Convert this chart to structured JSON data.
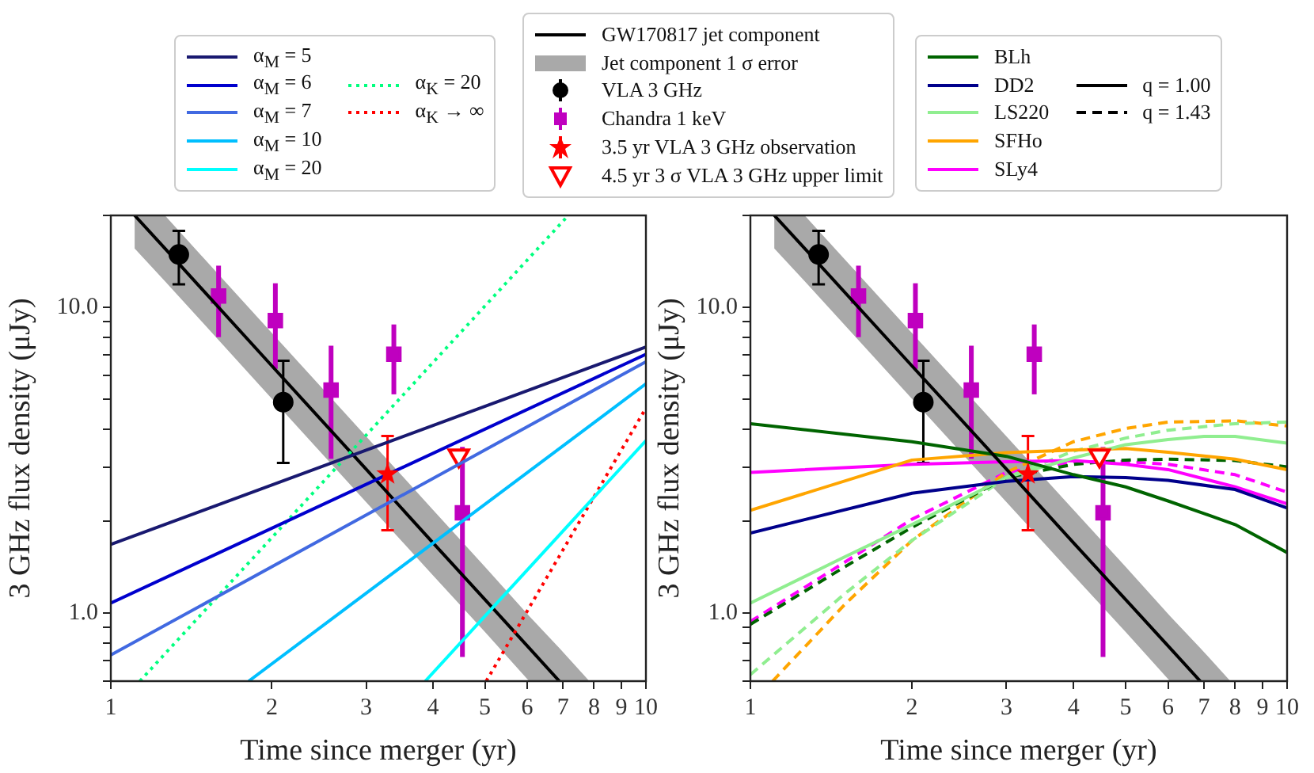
{
  "chart_data": [
    {
      "type": "line",
      "xlabel": "Time since merger (yr)",
      "ylabel": "3 GHz flux density (μJy)",
      "log": "xy",
      "legend": "top",
      "xlim": [
        1,
        10
      ],
      "ylim": [
        0.6,
        20
      ],
      "xticks": [
        1,
        2,
        3,
        4,
        5,
        6,
        7,
        8,
        9,
        10
      ],
      "yticks": [
        {
          "value": 0.6,
          "label": null
        },
        {
          "value": 0.7,
          "label": null
        },
        {
          "value": 0.8,
          "label": null
        },
        {
          "value": 0.9,
          "label": null
        },
        {
          "value": 1,
          "label": "1.0"
        },
        {
          "value": 2,
          "label": null
        },
        {
          "value": 3,
          "label": null
        },
        {
          "value": 4,
          "label": null
        },
        {
          "value": 5,
          "label": null
        },
        {
          "value": 6,
          "label": null
        },
        {
          "value": 7,
          "label": null
        },
        {
          "value": 8,
          "label": null
        },
        {
          "value": 9,
          "label": null
        },
        {
          "value": 10,
          "label": "10.0"
        },
        {
          "value": 20,
          "label": null
        }
      ],
      "annotations": [
        "Jet component 1 σ error"
      ],
      "series": [
        {
          "name": "α$_{M}$ = 5",
          "type": "line",
          "color": "#191970",
          "x": [
            1,
            10
          ],
          "values": [
            1.68,
            7.43
          ]
        },
        {
          "name": "α$_{M}$ = 6",
          "type": "line",
          "color": "#0000cd",
          "x": [
            1,
            10
          ],
          "values": [
            1.08,
            7.03
          ]
        },
        {
          "name": "α$_{M}$ = 7",
          "type": "line",
          "color": "#4169e1",
          "x": [
            1,
            10
          ],
          "values": [
            0.73,
            6.65
          ]
        },
        {
          "name": "α$_{M}$ = 10",
          "type": "line",
          "color": "#00bfff",
          "x": [
            1.81,
            10
          ],
          "values": [
            0.6,
            5.63
          ]
        },
        {
          "name": "α$_{M}$ = 20",
          "type": "line",
          "color": "#00ffff",
          "x": [
            3.87,
            10
          ],
          "values": [
            0.6,
            3.67
          ]
        },
        {
          "name": "α$_{K}$ = 20",
          "type": "line",
          "line_style": "dotted",
          "color": "#00ff7f",
          "x": [
            1.133,
            7.16
          ],
          "values": [
            0.6,
            20
          ]
        },
        {
          "name": "α$_{K}$ → ∞",
          "type": "line",
          "line_style": "dotted",
          "color": "#ff0000",
          "x": [
            5.03,
            10
          ],
          "values": [
            0.6,
            4.69
          ]
        },
        {
          "name": "GW170817 jet component",
          "type": "line",
          "color": "#000000",
          "x": [
            1.108,
            1.262,
            2,
            3,
            4,
            5,
            6.05,
            6.89,
            7.84
          ],
          "values": [
            20,
            15.6,
            6.44,
            2.96,
            1.7,
            1.11,
            0.77,
            0.6,
            null
          ],
          "upper": [
            20,
            20,
            8.25,
            3.79,
            2.18,
            1.42,
            0.98,
            0.77,
            0.6
          ],
          "lower": [
            15.6,
            12.2,
            5.03,
            2.31,
            1.33,
            0.87,
            0.6,
            0.6,
            0.6
          ]
        },
        {
          "name": "VLA 3 GHz",
          "type": "scatter",
          "marker": "circle",
          "color": "#000000",
          "x": [
            1.34,
            2.1
          ],
          "values": [
            14.9,
            4.9
          ],
          "errors": [
            [
              11.9,
              17.8
            ],
            [
              3.1,
              6.7
            ]
          ]
        },
        {
          "name": "Chandra 1 keV",
          "type": "scatter",
          "marker": "square",
          "color": "#bf00bf",
          "x": [
            1.59,
            2.03,
            2.58,
            3.38,
            4.54
          ],
          "values": [
            10.9,
            9.06,
            5.37,
            7.03,
            2.13
          ],
          "errors": [
            [
              8.0,
              13.7
            ],
            [
              6.3,
              12.0
            ],
            [
              3.2,
              7.5
            ],
            [
              5.2,
              8.8
            ],
            [
              0.72,
              3.5
            ]
          ]
        },
        {
          "name": "3.5 yr VLA 3 GHz observation",
          "type": "scatter",
          "marker": "star",
          "color": "#ff0000",
          "x": [
            3.29
          ],
          "values": [
            2.85
          ],
          "errors": [
            [
              1.87,
              3.8
            ]
          ]
        },
        {
          "name": "4.5 yr 3 σ VLA 3 GHz upper limit",
          "type": "scatter",
          "marker": "triangle",
          "color": "#ff0000",
          "x": [
            4.47
          ],
          "values": [
            3.28
          ]
        }
      ]
    },
    {
      "type": "line",
      "xlabel": "Time since merger (yr)",
      "ylabel": "3 GHz flux density (μJy)",
      "log": "xy",
      "legend": "top",
      "xlim": [
        1,
        10
      ],
      "ylim": [
        0.6,
        20
      ],
      "xticks": [
        1,
        2,
        3,
        4,
        5,
        6,
        7,
        8,
        9,
        10
      ],
      "yticks": [
        {
          "value": 0.6,
          "label": null
        },
        {
          "value": 0.7,
          "label": null
        },
        {
          "value": 0.8,
          "label": null
        },
        {
          "value": 0.9,
          "label": null
        },
        {
          "value": 1,
          "label": "1.0"
        },
        {
          "value": 2,
          "label": null
        },
        {
          "value": 3,
          "label": null
        },
        {
          "value": 4,
          "label": null
        },
        {
          "value": 5,
          "label": null
        },
        {
          "value": 6,
          "label": null
        },
        {
          "value": 7,
          "label": null
        },
        {
          "value": 8,
          "label": null
        },
        {
          "value": 9,
          "label": null
        },
        {
          "value": 10,
          "label": "10.0"
        },
        {
          "value": 20,
          "label": null
        }
      ],
      "annotations": [
        "q = 1.00",
        "q = 1.43"
      ],
      "series": [
        {
          "type": "line",
          "color": "#000000",
          "x": [
            1.108,
            1.262,
            2,
            3,
            4,
            5,
            6.05,
            6.89,
            7.84
          ],
          "values": [
            20,
            15.6,
            6.44,
            2.96,
            1.7,
            1.11,
            0.77,
            0.6,
            null
          ],
          "upper": [
            20,
            20,
            8.25,
            3.79,
            2.18,
            1.42,
            0.98,
            0.77,
            0.6
          ],
          "lower": [
            15.6,
            12.2,
            5.03,
            2.31,
            1.33,
            0.87,
            0.6,
            0.6,
            0.6
          ]
        },
        {
          "type": "scatter",
          "marker": "circle",
          "color": "#000000",
          "x": [
            1.34,
            2.1
          ],
          "values": [
            14.9,
            4.9
          ],
          "errors": [
            [
              11.9,
              17.8
            ],
            [
              3.1,
              6.7
            ]
          ]
        },
        {
          "type": "scatter",
          "marker": "square",
          "color": "#bf00bf",
          "x": [
            1.59,
            2.03,
            2.58,
            3.38,
            4.54
          ],
          "values": [
            10.9,
            9.06,
            5.37,
            7.03,
            2.13
          ],
          "errors": [
            [
              8.0,
              13.7
            ],
            [
              6.3,
              12.0
            ],
            [
              3.2,
              7.5
            ],
            [
              5.2,
              8.8
            ],
            [
              0.72,
              3.5
            ]
          ]
        },
        {
          "type": "scatter",
          "marker": "star",
          "color": "#ff0000",
          "x": [
            3.29
          ],
          "values": [
            2.85
          ],
          "errors": [
            [
              1.87,
              3.8
            ]
          ]
        },
        {
          "type": "scatter",
          "marker": "triangle",
          "color": "#ff0000",
          "x": [
            4.47
          ],
          "values": [
            3.28
          ]
        },
        {
          "name": "BLh",
          "type": "line",
          "color": "#006400",
          "x": [
            1,
            2,
            3,
            4,
            5,
            6,
            7,
            8,
            10
          ],
          "values": [
            4.17,
            3.64,
            3.26,
            2.84,
            2.59,
            2.33,
            2.12,
            1.95,
            1.58
          ]
        },
        {
          "name": "DD2",
          "type": "line",
          "color": "#00008b",
          "x": [
            1,
            2,
            3,
            4,
            5,
            6,
            8,
            10
          ],
          "values": [
            1.83,
            2.47,
            2.7,
            2.8,
            2.78,
            2.72,
            2.54,
            2.21
          ]
        },
        {
          "name": "LS220",
          "type": "line",
          "color": "#90ee90",
          "x": [
            1,
            1.5,
            2,
            3,
            4,
            5,
            6,
            7,
            8,
            10
          ],
          "values": [
            1.08,
            1.53,
            1.95,
            2.78,
            3.22,
            3.56,
            3.7,
            3.79,
            3.79,
            3.6
          ]
        },
        {
          "name": "SFHo",
          "type": "line",
          "color": "#ffa500",
          "x": [
            1,
            2,
            3,
            4,
            5,
            6,
            8,
            10
          ],
          "values": [
            2.17,
            3.17,
            3.35,
            3.42,
            3.46,
            3.36,
            3.19,
            2.95
          ]
        },
        {
          "name": "SLy4",
          "type": "line",
          "color": "#ff00ff",
          "x": [
            1,
            2,
            3,
            4,
            5,
            6,
            8,
            10
          ],
          "values": [
            2.89,
            3.07,
            3.13,
            3.16,
            3.07,
            2.95,
            2.59,
            2.28
          ]
        },
        {
          "type": "line",
          "line_style": "dashed",
          "color": "#006400",
          "x": [
            1,
            1.5,
            2,
            3,
            4,
            5,
            6,
            8,
            10
          ],
          "values": [
            0.92,
            1.42,
            1.91,
            2.78,
            3.07,
            3.17,
            3.19,
            3.16,
            3.01
          ]
        },
        {
          "type": "line",
          "line_style": "dashed",
          "color": "#90ee90",
          "x": [
            1,
            1.5,
            2,
            3,
            4,
            5,
            6,
            8,
            10
          ],
          "values": [
            0.63,
            1.16,
            1.73,
            2.78,
            3.39,
            3.74,
            3.97,
            4.17,
            4.22
          ]
        },
        {
          "type": "line",
          "line_style": "dashed",
          "color": "#ffa500",
          "x": [
            1.1,
            1.5,
            2,
            3,
            4,
            5,
            6,
            8,
            10
          ],
          "values": [
            0.6,
            1.07,
            1.73,
            2.89,
            3.64,
            4.02,
            4.22,
            4.26,
            4.1
          ]
        },
        {
          "type": "line",
          "line_style": "dashed",
          "color": "#ff00ff",
          "x": [
            1,
            1.5,
            2,
            3,
            4,
            5,
            6,
            8,
            10
          ],
          "values": [
            0.94,
            1.47,
            2.03,
            2.89,
            3.13,
            3.13,
            3.07,
            2.84,
            2.49
          ]
        }
      ]
    }
  ]
}
